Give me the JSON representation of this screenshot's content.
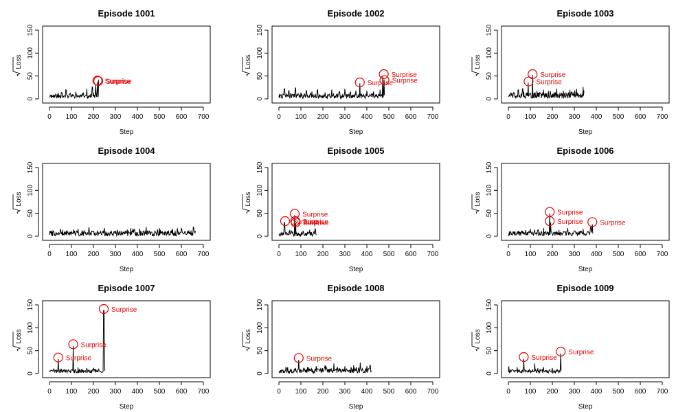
{
  "chart_data": [
    {
      "type": "line",
      "title": "Episode 1001",
      "xlabel": "Step",
      "ylabel": "Loss",
      "ylabel_sqrt": true,
      "xlim": [
        0,
        700
      ],
      "ylim": [
        0,
        150
      ],
      "xticks": [
        0,
        100,
        200,
        300,
        400,
        500,
        600,
        700
      ],
      "yticks": [
        0,
        50,
        100,
        150
      ],
      "x_end": 225,
      "baseline": 6,
      "noise": 5,
      "seed": 11,
      "peaks": [
        [
          5,
          8
        ],
        [
          30,
          10
        ],
        [
          55,
          14
        ],
        [
          75,
          20
        ],
        [
          95,
          12
        ],
        [
          120,
          15
        ],
        [
          150,
          12
        ],
        [
          170,
          22
        ],
        [
          195,
          26
        ],
        [
          210,
          30
        ],
        [
          218,
          38
        ],
        [
          224,
          42
        ]
      ],
      "annotations": [
        {
          "x": 218,
          "y": 40,
          "label": "Surprise"
        },
        {
          "x": 222,
          "y": 39,
          "label": "Surprise"
        }
      ]
    },
    {
      "type": "line",
      "title": "Episode 1002",
      "xlabel": "Step",
      "ylabel": "Loss",
      "ylabel_sqrt": true,
      "xlim": [
        0,
        700
      ],
      "ylim": [
        0,
        150
      ],
      "xticks": [
        0,
        100,
        200,
        300,
        400,
        500,
        600,
        700
      ],
      "yticks": [
        0,
        50,
        100,
        150
      ],
      "x_end": 480,
      "baseline": 6,
      "noise": 5,
      "seed": 22,
      "peaks": [
        [
          25,
          22
        ],
        [
          45,
          18
        ],
        [
          75,
          24
        ],
        [
          100,
          14
        ],
        [
          125,
          18
        ],
        [
          150,
          16
        ],
        [
          175,
          20
        ],
        [
          210,
          14
        ],
        [
          240,
          20
        ],
        [
          275,
          16
        ],
        [
          300,
          22
        ],
        [
          325,
          15
        ],
        [
          350,
          18
        ],
        [
          368,
          34
        ],
        [
          400,
          18
        ],
        [
          430,
          16
        ],
        [
          460,
          20
        ],
        [
          472,
          50
        ],
        [
          478,
          42
        ]
      ],
      "annotations": [
        {
          "x": 368,
          "y": 36,
          "label": "Surprise"
        },
        {
          "x": 477,
          "y": 54,
          "label": "Surprise"
        },
        {
          "x": 480,
          "y": 41,
          "label": "Surprise"
        }
      ]
    },
    {
      "type": "line",
      "title": "Episode 1003",
      "xlabel": "Step",
      "ylabel": "Loss",
      "ylabel_sqrt": true,
      "xlim": [
        0,
        700
      ],
      "ylim": [
        0,
        150
      ],
      "xticks": [
        0,
        100,
        200,
        300,
        400,
        500,
        600,
        700
      ],
      "yticks": [
        0,
        50,
        100,
        150
      ],
      "x_end": 345,
      "baseline": 8,
      "noise": 7,
      "seed": 33,
      "peaks": [
        [
          25,
          14
        ],
        [
          45,
          20
        ],
        [
          65,
          22
        ],
        [
          90,
          36
        ],
        [
          110,
          52
        ],
        [
          130,
          18
        ],
        [
          160,
          20
        ],
        [
          190,
          16
        ],
        [
          220,
          22
        ],
        [
          250,
          18
        ],
        [
          280,
          20
        ],
        [
          310,
          22
        ],
        [
          340,
          26
        ]
      ],
      "annotations": [
        {
          "x": 92,
          "y": 38,
          "label": "Surprise"
        },
        {
          "x": 110,
          "y": 54,
          "label": "Surprise"
        }
      ]
    },
    {
      "type": "line",
      "title": "Episode 1004",
      "xlabel": "Step",
      "ylabel": "Loss",
      "ylabel_sqrt": true,
      "xlim": [
        0,
        700
      ],
      "ylim": [
        0,
        150
      ],
      "xticks": [
        0,
        100,
        200,
        300,
        400,
        500,
        600,
        700
      ],
      "yticks": [
        0,
        50,
        100,
        150
      ],
      "x_end": 665,
      "baseline": 6,
      "noise": 6,
      "seed": 44,
      "peaks": [
        [
          60,
          14
        ],
        [
          130,
          16
        ],
        [
          180,
          20
        ],
        [
          250,
          18
        ],
        [
          310,
          14
        ],
        [
          370,
          18
        ],
        [
          410,
          16
        ],
        [
          440,
          20
        ],
        [
          500,
          18
        ],
        [
          560,
          16
        ],
        [
          600,
          18
        ],
        [
          655,
          20
        ]
      ],
      "annotations": []
    },
    {
      "type": "line",
      "title": "Episode 1005",
      "xlabel": "Step",
      "ylabel": "Loss",
      "ylabel_sqrt": true,
      "xlim": [
        0,
        700
      ],
      "ylim": [
        0,
        150
      ],
      "xticks": [
        0,
        100,
        200,
        300,
        400,
        500,
        600,
        700
      ],
      "yticks": [
        0,
        50,
        100,
        150
      ],
      "x_end": 170,
      "baseline": 5,
      "noise": 5,
      "seed": 55,
      "peaks": [
        [
          25,
          30
        ],
        [
          55,
          12
        ],
        [
          72,
          46
        ],
        [
          76,
          28
        ],
        [
          110,
          12
        ],
        [
          140,
          14
        ],
        [
          165,
          16
        ]
      ],
      "annotations": [
        {
          "x": 28,
          "y": 33,
          "label": "Surprise"
        },
        {
          "x": 72,
          "y": 49,
          "label": "Surprise"
        },
        {
          "x": 74,
          "y": 33,
          "label": "Surprise"
        },
        {
          "x": 76,
          "y": 30,
          "label": "Surprise"
        }
      ]
    },
    {
      "type": "line",
      "title": "Episode 1006",
      "xlabel": "Step",
      "ylabel": "Loss",
      "ylabel_sqrt": true,
      "xlim": [
        0,
        700
      ],
      "ylim": [
        0,
        150
      ],
      "xticks": [
        0,
        100,
        200,
        300,
        400,
        500,
        600,
        700
      ],
      "yticks": [
        0,
        50,
        100,
        150
      ],
      "x_end": 385,
      "baseline": 6,
      "noise": 5,
      "seed": 66,
      "peaks": [
        [
          60,
          12
        ],
        [
          100,
          16
        ],
        [
          135,
          14
        ],
        [
          160,
          18
        ],
        [
          188,
          50
        ],
        [
          192,
          30
        ],
        [
          230,
          14
        ],
        [
          270,
          18
        ],
        [
          300,
          12
        ],
        [
          340,
          16
        ],
        [
          375,
          20
        ],
        [
          382,
          26
        ]
      ],
      "annotations": [
        {
          "x": 188,
          "y": 53,
          "label": "Surprise"
        },
        {
          "x": 188,
          "y": 33,
          "label": "Surprise"
        },
        {
          "x": 382,
          "y": 31,
          "label": "Surprise"
        }
      ]
    },
    {
      "type": "line",
      "title": "Episode 1007",
      "xlabel": "Step",
      "ylabel": "Loss",
      "ylabel_sqrt": true,
      "xlim": [
        0,
        700
      ],
      "ylim": [
        0,
        150
      ],
      "xticks": [
        0,
        100,
        200,
        300,
        400,
        500,
        600,
        700
      ],
      "yticks": [
        0,
        50,
        100,
        150
      ],
      "x_end": 252,
      "baseline": 5,
      "noise": 4,
      "seed": 77,
      "peaks": [
        [
          20,
          10
        ],
        [
          40,
          32
        ],
        [
          70,
          10
        ],
        [
          108,
          60
        ],
        [
          130,
          12
        ],
        [
          170,
          12
        ],
        [
          210,
          10
        ],
        [
          247,
          138
        ],
        [
          250,
          80
        ]
      ],
      "annotations": [
        {
          "x": 40,
          "y": 35,
          "label": "Surprise"
        },
        {
          "x": 108,
          "y": 64,
          "label": "Surprise"
        },
        {
          "x": 247,
          "y": 141,
          "label": "Surprise"
        }
      ]
    },
    {
      "type": "line",
      "title": "Episode 1008",
      "xlabel": "Step",
      "ylabel": "Loss",
      "ylabel_sqrt": true,
      "xlim": [
        0,
        700
      ],
      "ylim": [
        0,
        150
      ],
      "xticks": [
        0,
        100,
        200,
        300,
        400,
        500,
        600,
        700
      ],
      "yticks": [
        0,
        50,
        100,
        150
      ],
      "x_end": 420,
      "baseline": 6,
      "noise": 5,
      "seed": 88,
      "peaks": [
        [
          40,
          14
        ],
        [
          90,
          30
        ],
        [
          130,
          14
        ],
        [
          170,
          16
        ],
        [
          210,
          18
        ],
        [
          250,
          22
        ],
        [
          300,
          16
        ],
        [
          340,
          18
        ],
        [
          370,
          24
        ],
        [
          400,
          16
        ],
        [
          415,
          18
        ]
      ],
      "annotations": [
        {
          "x": 90,
          "y": 34,
          "label": "Surprise"
        }
      ]
    },
    {
      "type": "line",
      "title": "Episode 1009",
      "xlabel": "Step",
      "ylabel": "Loss",
      "ylabel_sqrt": true,
      "xlim": [
        0,
        700
      ],
      "ylim": [
        0,
        150
      ],
      "xticks": [
        0,
        100,
        200,
        300,
        400,
        500,
        600,
        700
      ],
      "yticks": [
        0,
        50,
        100,
        150
      ],
      "x_end": 240,
      "baseline": 5,
      "noise": 4,
      "seed": 99,
      "peaks": [
        [
          2,
          16
        ],
        [
          70,
          32
        ],
        [
          120,
          22
        ],
        [
          160,
          14
        ],
        [
          200,
          12
        ],
        [
          238,
          44
        ]
      ],
      "annotations": [
        {
          "x": 70,
          "y": 36,
          "label": "Surprise"
        },
        {
          "x": 238,
          "y": 48,
          "label": "Surprise"
        }
      ]
    }
  ]
}
